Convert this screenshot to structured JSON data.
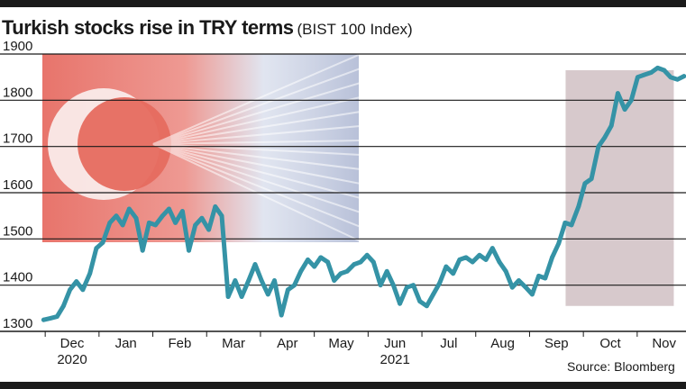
{
  "title": "Turkish stocks rise in TRY terms",
  "subtitle": "(BIST 100 Index)",
  "source": "Source: Bloomberg",
  "colors": {
    "line": "#3593a6",
    "highlight": "#d7c9cc",
    "grid": "#1a1a1a",
    "text": "#1a1a1a",
    "flag_red": "#e0463a",
    "flag_white": "#fbf1ef"
  },
  "chart_data": {
    "type": "line",
    "title": "Turkish stocks rise in TRY terms",
    "subtitle": "(BIST 100 Index)",
    "xlabel": "",
    "ylabel": "",
    "ylim": [
      1300,
      1900
    ],
    "yticks": [
      1300,
      1400,
      1500,
      1600,
      1700,
      1800,
      1900
    ],
    "grid": true,
    "legend": "none",
    "month_labels": [
      {
        "label": "Dec",
        "year": "2020",
        "month": 0
      },
      {
        "label": "Jan",
        "year": "",
        "month": 1
      },
      {
        "label": "Feb",
        "year": "",
        "month": 2
      },
      {
        "label": "Mar",
        "year": "",
        "month": 3
      },
      {
        "label": "Apr",
        "year": "",
        "month": 4
      },
      {
        "label": "May",
        "year": "",
        "month": 5
      },
      {
        "label": "Jun",
        "year": "2021",
        "month": 6
      },
      {
        "label": "Jul",
        "year": "",
        "month": 7
      },
      {
        "label": "Aug",
        "year": "",
        "month": 8
      },
      {
        "label": "Sep",
        "year": "",
        "month": 9
      },
      {
        "label": "Oct",
        "year": "",
        "month": 10
      },
      {
        "label": "Nov",
        "year": "",
        "month": 11
      }
    ],
    "highlight_months": [
      9.17,
      11.18
    ],
    "highlight_range": [
      1355,
      1865
    ],
    "series": [
      {
        "name": "",
        "x": [
          -0.53,
          -0.41,
          -0.28,
          -0.16,
          -0.04,
          0.08,
          0.2,
          0.33,
          0.45,
          0.57,
          0.7,
          0.82,
          0.94,
          1.06,
          1.19,
          1.31,
          1.43,
          1.55,
          1.68,
          1.8,
          1.92,
          2.05,
          2.17,
          2.29,
          2.41,
          2.54,
          2.66,
          2.78,
          2.9,
          3.03,
          3.15,
          3.28,
          3.4,
          3.52,
          3.64,
          3.76,
          3.89,
          4.01,
          4.13,
          4.25,
          4.38,
          4.5,
          4.62,
          4.75,
          4.87,
          4.99,
          5.11,
          5.24,
          5.36,
          5.48,
          5.6,
          5.73,
          5.85,
          5.97,
          6.09,
          6.22,
          6.34,
          6.46,
          6.59,
          6.71,
          6.83,
          6.95,
          7.08,
          7.2,
          7.32,
          7.44,
          7.57,
          7.69,
          7.81,
          7.94,
          8.06,
          8.18,
          8.3,
          8.43,
          8.55,
          8.67,
          8.79,
          8.92,
          9.04,
          9.16,
          9.28,
          9.41,
          9.53,
          9.65,
          9.78,
          9.9,
          10.02,
          10.14,
          10.27,
          10.39,
          10.51,
          10.63,
          10.76,
          10.88,
          11,
          11.12,
          11.25,
          11.37
        ],
        "values": [
          1325,
          1328,
          1332,
          1355,
          1390,
          1408,
          1390,
          1425,
          1480,
          1492,
          1535,
          1550,
          1530,
          1565,
          1545,
          1475,
          1535,
          1530,
          1550,
          1565,
          1535,
          1560,
          1475,
          1530,
          1545,
          1520,
          1570,
          1550,
          1375,
          1410,
          1375,
          1410,
          1445,
          1410,
          1380,
          1410,
          1335,
          1390,
          1400,
          1430,
          1455,
          1440,
          1460,
          1450,
          1410,
          1425,
          1430,
          1445,
          1450,
          1465,
          1450,
          1400,
          1430,
          1400,
          1360,
          1395,
          1400,
          1365,
          1355,
          1380,
          1405,
          1440,
          1425,
          1455,
          1460,
          1450,
          1465,
          1455,
          1480,
          1450,
          1430,
          1395,
          1410,
          1395,
          1380,
          1420,
          1415,
          1460,
          1490,
          1535,
          1530,
          1570,
          1620,
          1630,
          1700,
          1720,
          1745,
          1815,
          1780,
          1800,
          1850,
          1855,
          1860,
          1870,
          1865,
          1850,
          1845,
          1852
        ]
      }
    ]
  }
}
